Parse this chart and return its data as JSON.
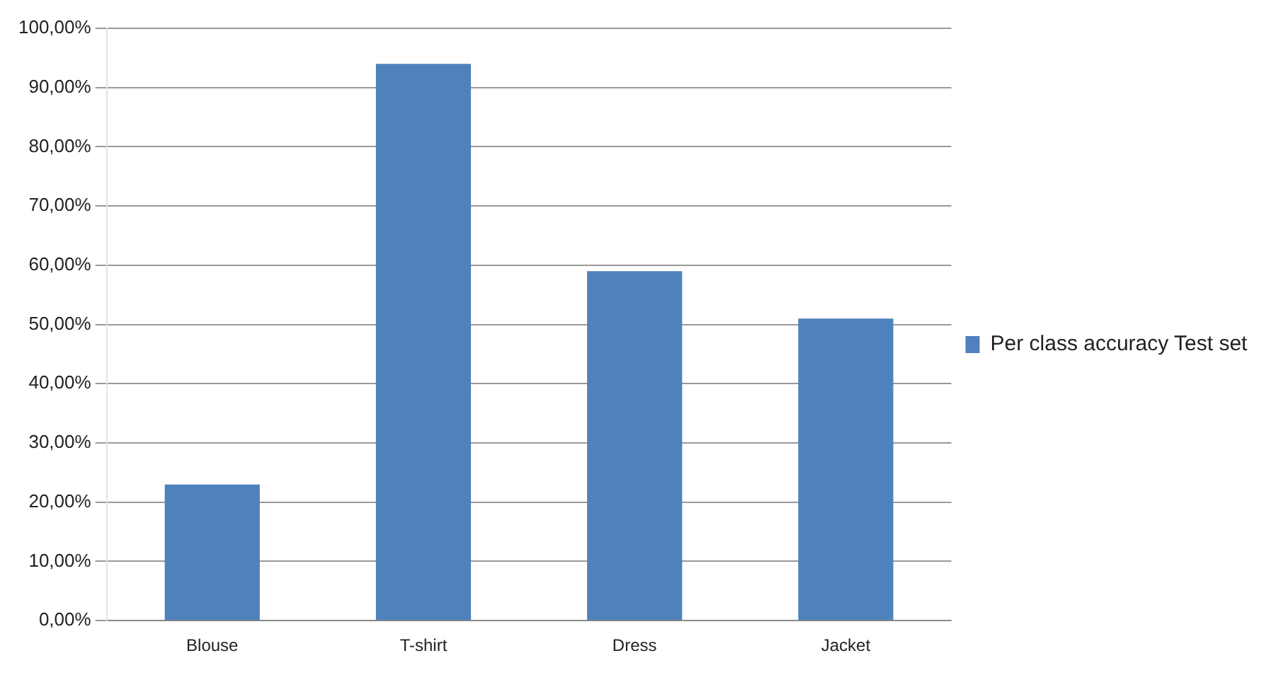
{
  "chart_data": {
    "type": "bar",
    "categories": [
      "Blouse",
      "T-shirt",
      "Dress",
      "Jacket"
    ],
    "series": [
      {
        "name": "Per class accuracy Test set",
        "color": "#4f81bd",
        "values": [
          23,
          94,
          59,
          51
        ]
      }
    ],
    "ylim": [
      0,
      100
    ],
    "yticks": [
      {
        "value": 0,
        "label": "0,00%"
      },
      {
        "value": 10,
        "label": "10,00%"
      },
      {
        "value": 20,
        "label": "20,00%"
      },
      {
        "value": 30,
        "label": "30,00%"
      },
      {
        "value": 40,
        "label": "40,00%"
      },
      {
        "value": 50,
        "label": "50,00%"
      },
      {
        "value": 60,
        "label": "60,00%"
      },
      {
        "value": 70,
        "label": "70,00%"
      },
      {
        "value": 80,
        "label": "80,00%"
      },
      {
        "value": 90,
        "label": "90,00%"
      },
      {
        "value": 100,
        "label": "100,00%"
      }
    ],
    "grid": "y",
    "legend": "right"
  }
}
